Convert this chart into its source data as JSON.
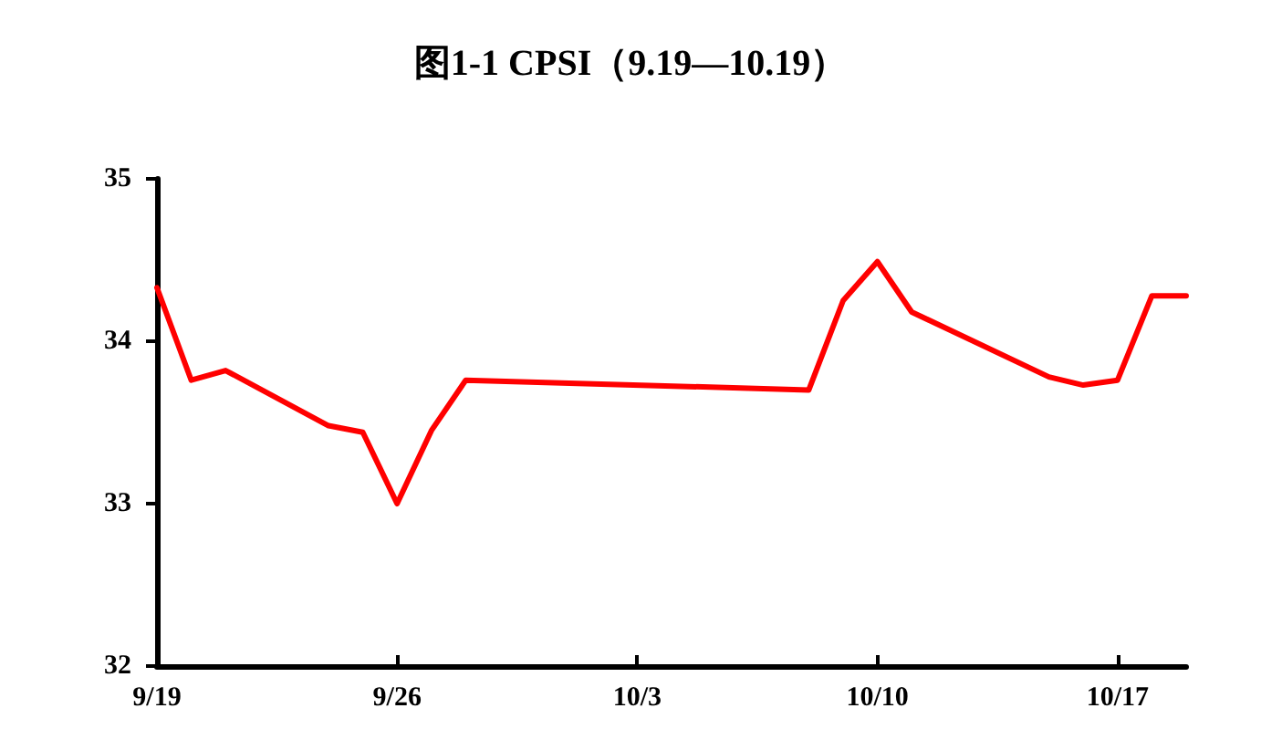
{
  "chart_data": {
    "type": "line",
    "title": "图1-1 CPSI（9.19—10.19）",
    "x": [
      "--09-19",
      "--09-20",
      "--09-21",
      "--09-24",
      "--09-25",
      "--09-26",
      "--09-27",
      "--09-28",
      "--10-08",
      "--10-09",
      "--10-10",
      "--10-11",
      "--10-15",
      "--10-16",
      "--10-17",
      "--10-18",
      "--10-19"
    ],
    "series": [
      {
        "color": "#ff0000",
        "values": [
          34.33,
          33.76,
          33.82,
          33.48,
          33.44,
          33.0,
          33.45,
          33.76,
          33.7,
          34.25,
          34.49,
          34.18,
          33.78,
          33.73,
          33.76,
          34.28,
          34.28
        ]
      }
    ],
    "xlim": [
      "--09-19",
      "--10-19"
    ],
    "xticks": [
      {
        "value": "--09-19",
        "label": "9/19"
      },
      {
        "value": "--09-26",
        "label": "9/26"
      },
      {
        "value": "--10-03",
        "label": "10/3"
      },
      {
        "value": "--10-10",
        "label": "10/10"
      },
      {
        "value": "--10-17",
        "label": "10/17"
      }
    ],
    "ylim": [
      32,
      35
    ],
    "yticks": [
      32,
      33,
      34,
      35
    ],
    "grid": false,
    "marker": "none",
    "line_style": "solid"
  }
}
